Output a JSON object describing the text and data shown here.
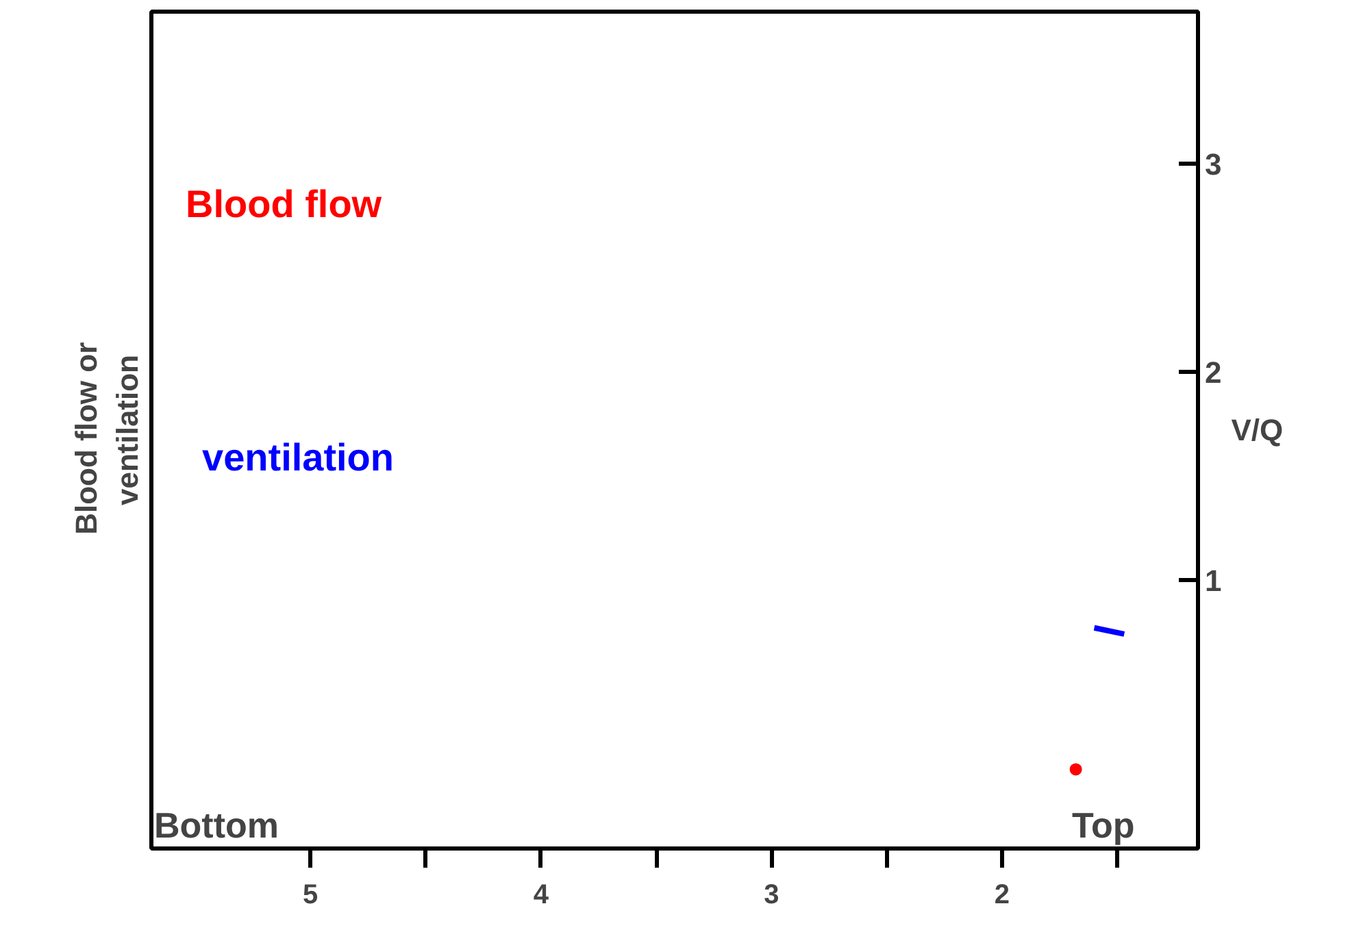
{
  "chart_data": {
    "type": "scatter",
    "ylabel": "Blood flow   or\nventilation",
    "y2label": "V/Q",
    "xlim": [
      5.69,
      1.15
    ],
    "xticks": [
      5,
      {
        "value": 4.5,
        "label": null
      },
      4,
      {
        "value": 3.5,
        "label": null
      },
      3,
      {
        "value": 2.5,
        "label": null
      },
      2,
      {
        "value": 1.5,
        "label": null
      }
    ],
    "y2lim": [
      -0.29,
      3.73
    ],
    "y2ticks": [
      1,
      2,
      3
    ],
    "grid": false,
    "legend": false,
    "series": [
      {
        "name": "Blood flow",
        "type": "scatter",
        "color": "#ff0000",
        "axis": "y2",
        "x": [
          1.68
        ],
        "values": [
          0.09
        ]
      },
      {
        "name": "ventilation",
        "type": "line",
        "color": "#0000ff",
        "axis": "y2",
        "x": [
          1.6,
          1.47
        ],
        "values": [
          0.77,
          0.74
        ]
      }
    ],
    "annotations": [
      "Bottom",
      "Top"
    ]
  }
}
